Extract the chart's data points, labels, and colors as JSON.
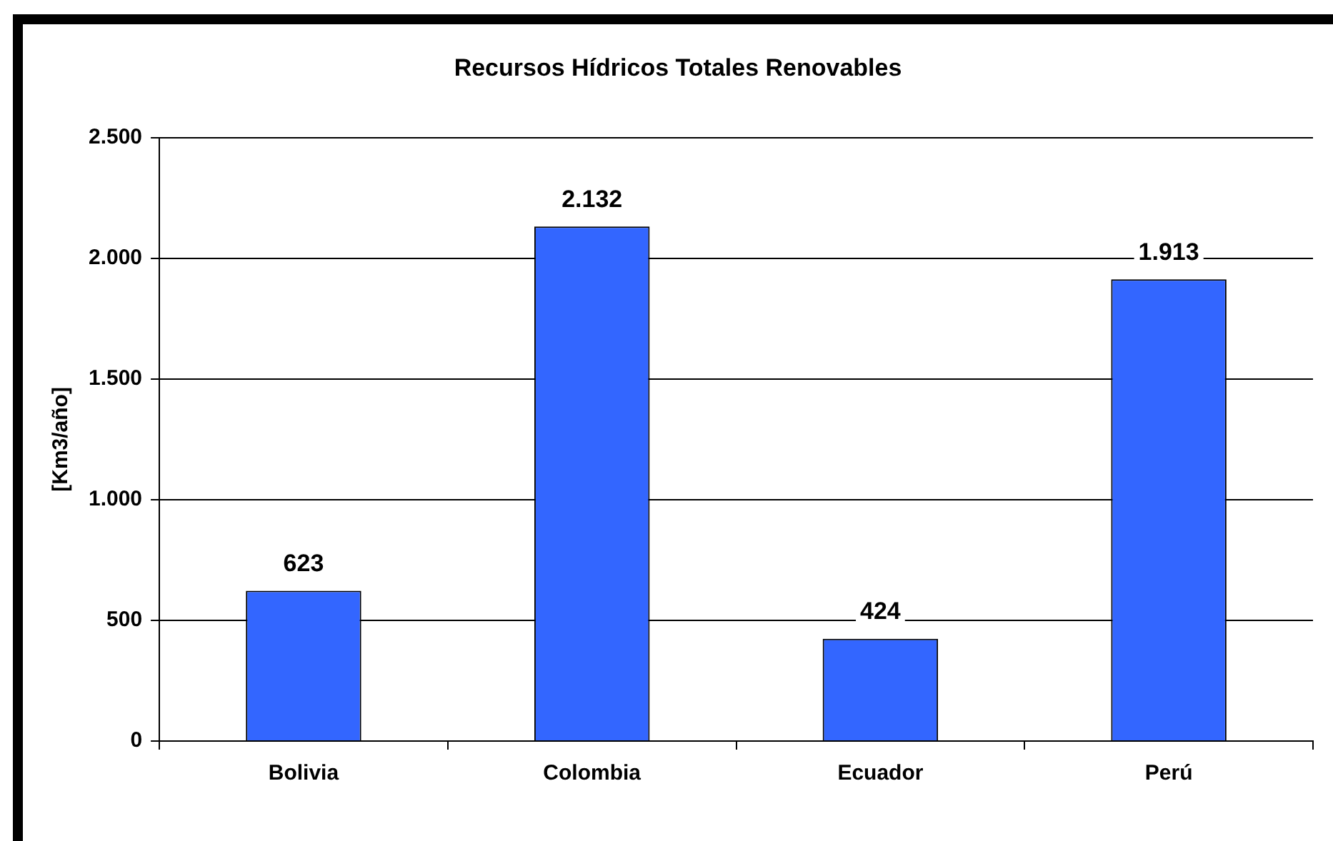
{
  "chart_data": {
    "type": "bar",
    "title": "Recursos Hídricos Totales Renovables",
    "ylabel": "[Km3/año]",
    "categories": [
      "Bolivia",
      "Colombia",
      "Ecuador",
      "Perú"
    ],
    "values": [
      623,
      2132,
      424,
      1913
    ],
    "value_labels": [
      "623",
      "2.132",
      "424",
      "1.913"
    ],
    "color": "#3366ff",
    "ylim": [
      0,
      2500
    ],
    "yticks": [
      {
        "value": 0,
        "label": "0"
      },
      {
        "value": 500,
        "label": "500"
      },
      {
        "value": 1000,
        "label": "1.000"
      },
      {
        "value": 1500,
        "label": "1.500"
      },
      {
        "value": 2000,
        "label": "2.000"
      },
      {
        "value": 2500,
        "label": "2.500"
      }
    ],
    "grid": "y",
    "legend": false
  }
}
